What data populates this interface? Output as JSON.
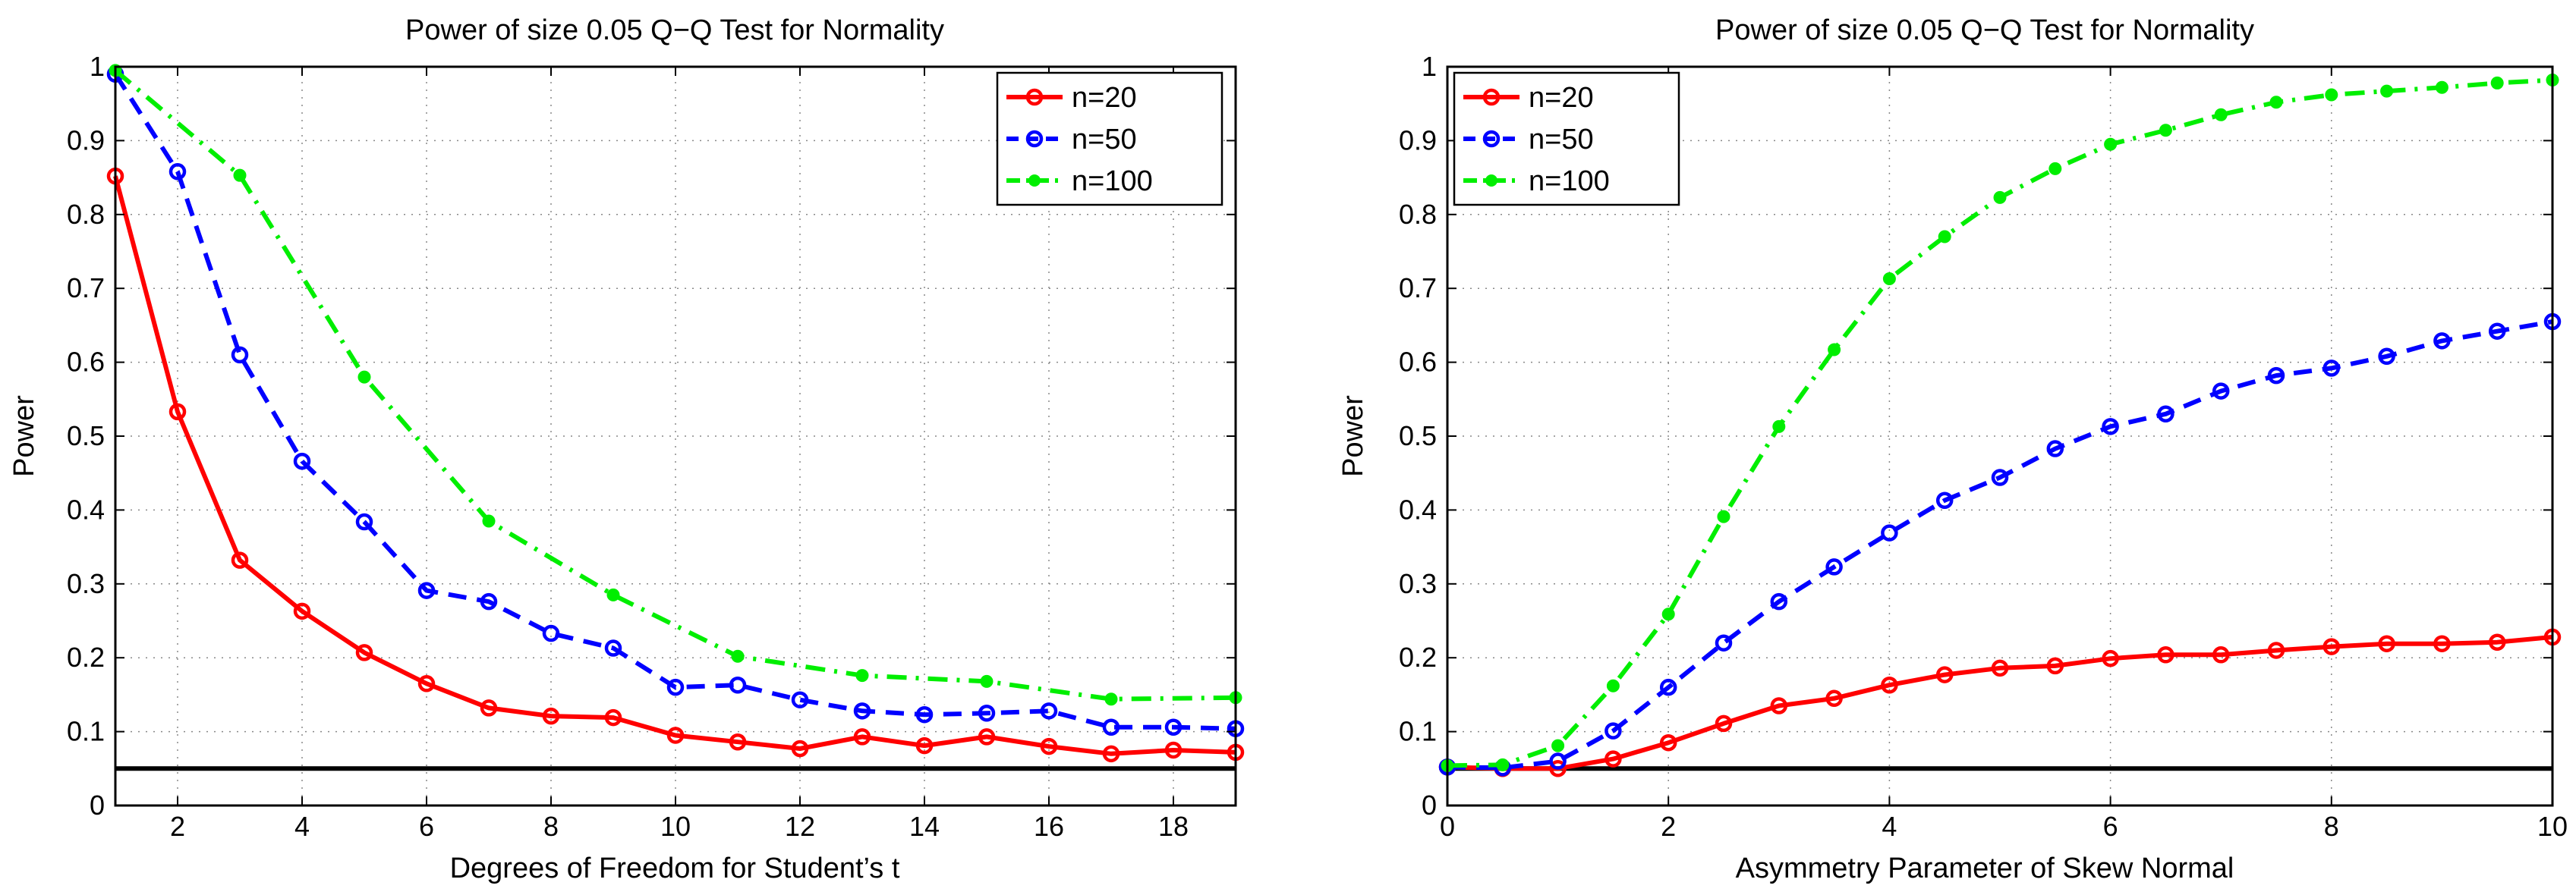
{
  "chart_data": [
    {
      "type": "line",
      "title": "Power of size 0.05 Q−Q Test for Normality",
      "xlabel": "Degrees of Freedom for Student’s t",
      "ylabel": "Power",
      "xlim": [
        1,
        19
      ],
      "ylim": [
        0,
        1
      ],
      "grid": true,
      "legend_position": "top-right",
      "xticks": [
        2,
        4,
        6,
        8,
        10,
        12,
        14,
        16,
        18
      ],
      "xtick_labels": [
        "2",
        "4",
        "6",
        "8",
        "10",
        "12",
        "14",
        "16",
        "18"
      ],
      "yticks": [
        0,
        0.1,
        0.2,
        0.3,
        0.4,
        0.5,
        0.6,
        0.7,
        0.8,
        0.9,
        1
      ],
      "ytick_labels": [
        "0",
        "0.1",
        "0.2",
        "0.3",
        "0.4",
        "0.5",
        "0.6",
        "0.7",
        "0.8",
        "0.9",
        "1"
      ],
      "reference_line": 0.05,
      "x": [
        1,
        2,
        3,
        4,
        5,
        6,
        7,
        8,
        9,
        10,
        11,
        12,
        13,
        14,
        15,
        16,
        17,
        18,
        19
      ],
      "series": [
        {
          "name": "n=20",
          "color": "#ff0000",
          "dash": "solid",
          "marker": "ring",
          "values": [
            0.852,
            0.533,
            0.332,
            0.263,
            0.207,
            0.165,
            0.132,
            0.121,
            0.119,
            0.095,
            0.086,
            0.077,
            0.093,
            0.081,
            0.093,
            0.08,
            0.07,
            0.075,
            0.072
          ]
        },
        {
          "name": "n=50",
          "color": "#0000ff",
          "dash": "dashed",
          "marker": "ring",
          "values": [
            0.99,
            0.858,
            0.61,
            0.466,
            0.384,
            0.291,
            0.276,
            0.233,
            0.213,
            0.16,
            0.163,
            0.143,
            0.128,
            0.123,
            0.125,
            0.128,
            0.106,
            0.106,
            0.104
          ]
        },
        {
          "name": "n=100",
          "color": "#00ee00",
          "dash": "dashdot",
          "marker": "dot",
          "values": [
            0.995,
            null,
            0.853,
            null,
            0.58,
            null,
            0.385,
            null,
            0.285,
            null,
            0.202,
            null,
            0.176,
            null,
            0.168,
            null,
            0.144,
            null,
            0.146
          ]
        }
      ]
    },
    {
      "type": "line",
      "title": "Power of size 0.05 Q−Q Test for Normality",
      "xlabel": "Asymmetry Parameter of Skew Normal",
      "ylabel": "Power",
      "xlim": [
        0,
        10
      ],
      "ylim": [
        0,
        1
      ],
      "grid": true,
      "legend_position": "top-left",
      "xticks": [
        0,
        2,
        4,
        6,
        8,
        10
      ],
      "xtick_labels": [
        "0",
        "2",
        "4",
        "6",
        "8",
        "10"
      ],
      "yticks": [
        0,
        0.1,
        0.2,
        0.3,
        0.4,
        0.5,
        0.6,
        0.7,
        0.8,
        0.9,
        1
      ],
      "ytick_labels": [
        "0",
        "0.1",
        "0.2",
        "0.3",
        "0.4",
        "0.5",
        "0.6",
        "0.7",
        "0.8",
        "0.9",
        "1"
      ],
      "reference_line": 0.05,
      "x": [
        0,
        0.5,
        1,
        1.5,
        2,
        2.5,
        3,
        3.5,
        4,
        4.5,
        5,
        5.5,
        6,
        6.5,
        7,
        7.5,
        8,
        8.5,
        9,
        9.5,
        10
      ],
      "series": [
        {
          "name": "n=20",
          "color": "#ff0000",
          "dash": "solid",
          "marker": "ring",
          "values": [
            0.052,
            0.05,
            0.05,
            0.063,
            0.085,
            0.111,
            0.135,
            0.145,
            0.163,
            0.177,
            0.186,
            0.189,
            0.199,
            0.204,
            0.204,
            0.21,
            0.215,
            0.219,
            0.219,
            0.221,
            0.228
          ]
        },
        {
          "name": "n=50",
          "color": "#0000ff",
          "dash": "dashed",
          "marker": "ring",
          "values": [
            0.052,
            0.051,
            0.06,
            0.101,
            0.16,
            0.22,
            0.276,
            0.323,
            0.369,
            0.413,
            0.444,
            0.483,
            0.513,
            0.53,
            0.561,
            0.582,
            0.592,
            0.608,
            0.629,
            0.642,
            0.655
          ]
        },
        {
          "name": "n=100",
          "color": "#00ee00",
          "dash": "dashdot",
          "marker": "dot",
          "values": [
            0.054,
            0.055,
            0.081,
            0.162,
            0.259,
            0.391,
            0.513,
            0.617,
            0.713,
            0.77,
            0.823,
            0.862,
            0.895,
            0.914,
            0.935,
            0.952,
            0.962,
            0.967,
            0.972,
            0.978,
            0.982
          ]
        }
      ]
    }
  ]
}
